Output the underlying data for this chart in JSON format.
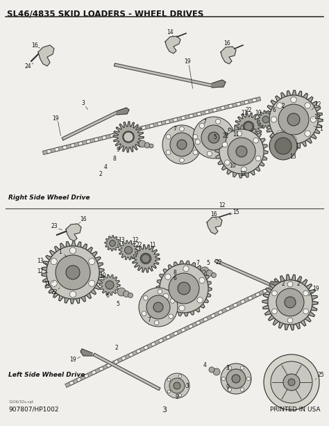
{
  "title": "SL46/4835 SKID LOADERS - WHEEL DRIVES",
  "subtitle_right": "Right Side Wheel Drive",
  "subtitle_left": "Left Side Wheel Drive",
  "footer_left": "907807/HP1002",
  "footer_center": "3",
  "footer_right": "PRINTED IN USA",
  "footer_small": "1106/32s.cpt",
  "bg_color": "#f0efeb",
  "line_color": "#1a1a1a",
  "text_color": "#111111",
  "part_color": "#3a3a3a",
  "part_fill": "#c8c8c0",
  "part_fill2": "#a8a8a0",
  "part_fill3": "#888880"
}
